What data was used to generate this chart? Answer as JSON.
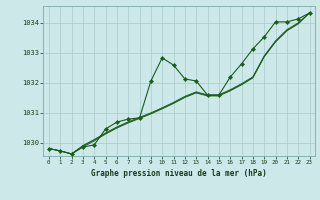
{
  "title": "Graphe pression niveau de la mer (hPa)",
  "bg_color": "#cce8e8",
  "grid_color": "#aacccc",
  "line_color": "#1a5c1a",
  "marker_color": "#1a5c1a",
  "x_labels": [
    "0",
    "1",
    "2",
    "3",
    "4",
    "5",
    "6",
    "7",
    "8",
    "9",
    "10",
    "11",
    "12",
    "13",
    "14",
    "15",
    "16",
    "17",
    "18",
    "19",
    "20",
    "21",
    "22",
    "23"
  ],
  "ylim": [
    1029.55,
    1034.55
  ],
  "yticks": [
    1030,
    1031,
    1032,
    1033,
    1034
  ],
  "series_main": [
    1029.8,
    1029.72,
    1029.62,
    1029.85,
    1029.92,
    1030.45,
    1030.68,
    1030.78,
    1030.82,
    1032.05,
    1032.82,
    1032.58,
    1032.12,
    1032.05,
    1031.58,
    1031.58,
    1032.18,
    1032.62,
    1033.12,
    1033.52,
    1034.02,
    1034.02,
    1034.12,
    1034.32
  ],
  "series_smooth1": [
    1029.8,
    1029.72,
    1029.62,
    1029.85,
    1030.05,
    1030.28,
    1030.48,
    1030.65,
    1030.8,
    1030.95,
    1031.12,
    1031.3,
    1031.5,
    1031.65,
    1031.55,
    1031.55,
    1031.72,
    1031.92,
    1032.15,
    1032.85,
    1033.35,
    1033.72,
    1033.95,
    1034.32
  ],
  "series_smooth2": [
    1029.8,
    1029.72,
    1029.62,
    1029.88,
    1030.08,
    1030.3,
    1030.5,
    1030.67,
    1030.82,
    1030.97,
    1031.14,
    1031.32,
    1031.52,
    1031.67,
    1031.57,
    1031.57,
    1031.74,
    1031.94,
    1032.17,
    1032.87,
    1033.37,
    1033.74,
    1033.97,
    1034.32
  ],
  "series_smooth3": [
    1029.8,
    1029.72,
    1029.62,
    1029.9,
    1030.1,
    1030.32,
    1030.52,
    1030.69,
    1030.84,
    1030.99,
    1031.16,
    1031.34,
    1031.54,
    1031.69,
    1031.59,
    1031.59,
    1031.76,
    1031.96,
    1032.19,
    1032.89,
    1033.39,
    1033.76,
    1033.99,
    1034.32
  ]
}
